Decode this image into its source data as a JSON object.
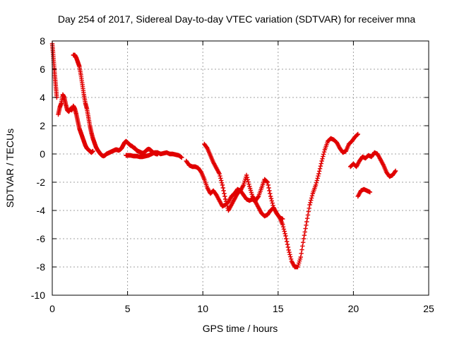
{
  "chart_data": {
    "type": "scatter",
    "title": "Day 254 of 2017, Sidereal Day-to-day VTEC variation (SDTVAR) for receiver mna",
    "xlabel": "GPS time / hours",
    "ylabel": "SDTVAR / TECUs",
    "xlim": [
      0,
      25
    ],
    "ylim": [
      -10,
      8
    ],
    "xticks": [
      "0",
      "5",
      "10",
      "15",
      "20",
      "25"
    ],
    "yticks": [
      "-10",
      "-8",
      "-6",
      "-4",
      "-2",
      "0",
      "2",
      "4",
      "6",
      "8"
    ],
    "grid": true,
    "marker": "+",
    "color": "#e00000",
    "segments": [
      {
        "x": [
          0.0,
          0.05,
          0.1,
          0.15,
          0.2,
          0.25,
          0.3
        ],
        "y": [
          7.8,
          7.2,
          6.5,
          5.8,
          5.2,
          4.6,
          4.0
        ]
      },
      {
        "x": [
          0.4,
          0.5,
          0.6,
          0.7,
          0.8,
          0.9,
          1.0,
          1.1,
          1.2,
          1.3,
          1.4,
          1.5,
          1.6,
          1.7,
          1.8,
          1.9,
          2.0,
          2.1,
          2.2,
          2.3,
          2.4,
          2.5,
          2.6,
          2.7
        ],
        "y": [
          2.8,
          3.3,
          3.6,
          4.2,
          4.0,
          3.5,
          3.1,
          3.0,
          3.2,
          3.1,
          3.4,
          3.2,
          2.8,
          2.3,
          1.8,
          1.5,
          1.2,
          0.9,
          0.6,
          0.4,
          0.3,
          0.2,
          0.1,
          0.2
        ]
      },
      {
        "x": [
          1.4,
          1.5,
          1.6,
          1.7,
          1.8,
          1.9,
          2.0,
          2.1,
          2.2,
          2.3,
          2.4,
          2.5,
          2.6,
          2.7,
          2.8,
          2.9,
          3.0,
          3.1,
          3.2,
          3.3,
          3.4,
          3.5,
          3.6,
          3.7,
          3.8,
          3.9,
          4.0,
          4.1,
          4.2,
          4.3,
          4.4,
          4.5,
          4.6,
          4.7,
          4.8,
          4.9,
          5.0,
          5.1,
          5.2,
          5.3,
          5.4,
          5.5,
          5.6,
          5.7,
          5.8,
          5.9,
          6.0,
          6.1,
          6.2,
          6.3,
          6.4,
          6.5,
          6.6,
          6.7,
          6.8,
          6.9,
          7.0
        ],
        "y": [
          7.0,
          7.0,
          6.8,
          6.5,
          6.2,
          5.6,
          4.9,
          4.2,
          3.6,
          3.2,
          2.6,
          2.0,
          1.5,
          1.1,
          0.8,
          0.5,
          0.3,
          0.15,
          0.0,
          -0.1,
          -0.15,
          -0.1,
          0.0,
          0.05,
          0.1,
          0.15,
          0.2,
          0.25,
          0.3,
          0.3,
          0.25,
          0.3,
          0.4,
          0.6,
          0.8,
          0.9,
          0.8,
          0.7,
          0.6,
          0.55,
          0.45,
          0.4,
          0.25,
          0.2,
          0.15,
          0.1,
          0.05,
          0.1,
          0.2,
          0.3,
          0.35,
          0.3,
          0.2,
          0.1,
          0.05,
          0.0,
          0.0
        ]
      },
      {
        "x": [
          4.9,
          5.0,
          5.2,
          5.4,
          5.6,
          5.8,
          6.0,
          6.2,
          6.4,
          6.6,
          6.8,
          7.0,
          7.2,
          7.4,
          7.6,
          7.8,
          8.0,
          8.2,
          8.4,
          8.6
        ],
        "y": [
          -0.1,
          -0.1,
          -0.1,
          -0.15,
          -0.15,
          -0.2,
          -0.2,
          -0.15,
          -0.1,
          0.0,
          0.1,
          0.1,
          0.0,
          0.05,
          0.1,
          0.0,
          0.0,
          -0.05,
          -0.1,
          -0.25
        ]
      },
      {
        "x": [
          8.9,
          9.1,
          9.3,
          9.5,
          9.7,
          9.9,
          10.1,
          10.3,
          10.5,
          10.7,
          10.9,
          11.1,
          11.3,
          11.5,
          11.7,
          11.9,
          12.1,
          12.3,
          12.5,
          12.7,
          12.9,
          13.1,
          13.3,
          13.5,
          13.7,
          13.9,
          14.1,
          14.3,
          14.5,
          14.7,
          14.9,
          15.1,
          15.3,
          15.5,
          15.7,
          15.9,
          16.1,
          16.3,
          16.5,
          16.7,
          16.9,
          17.1,
          17.3,
          17.5,
          17.7,
          17.9,
          18.1,
          18.3,
          18.5,
          18.7,
          18.9,
          19.1,
          19.3,
          19.5,
          19.7,
          19.9,
          20.1,
          20.3
        ],
        "y": [
          -0.5,
          -0.8,
          -0.9,
          -0.9,
          -1.0,
          -1.3,
          -1.8,
          -2.4,
          -2.8,
          -2.6,
          -2.9,
          -3.3,
          -3.7,
          -3.6,
          -3.4,
          -3.0,
          -2.8,
          -2.5,
          -2.6,
          -2.2,
          -1.5,
          -2.3,
          -3.0,
          -3.3,
          -3.0,
          -2.4,
          -1.8,
          -2.0,
          -3.0,
          -3.8,
          -4.2,
          -4.5,
          -5.0,
          -5.8,
          -6.8,
          -7.6,
          -8.0,
          -8.0,
          -7.3,
          -6.0,
          -4.8,
          -3.6,
          -2.8,
          -2.2,
          -1.4,
          -0.5,
          0.3,
          0.9,
          1.1,
          1.0,
          0.8,
          0.4,
          0.1,
          0.2,
          0.7,
          0.9,
          1.2,
          1.4
        ]
      },
      {
        "x": [
          10.1,
          10.3,
          10.5,
          10.7,
          10.9,
          11.1,
          11.3,
          11.5,
          11.7,
          11.9,
          12.1,
          12.3,
          12.5,
          12.7,
          12.9,
          13.1,
          13.3,
          13.5,
          13.7,
          13.9,
          14.1,
          14.3,
          14.5,
          14.7,
          14.9,
          15.1,
          15.3
        ],
        "y": [
          0.7,
          0.4,
          -0.1,
          -0.6,
          -1.0,
          -1.4,
          -2.2,
          -3.2,
          -4.0,
          -3.6,
          -3.2,
          -2.8,
          -2.6,
          -2.9,
          -3.2,
          -3.3,
          -3.2,
          -3.4,
          -3.8,
          -4.2,
          -4.4,
          -4.3,
          -4.0,
          -3.8,
          -4.2,
          -4.5,
          -4.6
        ]
      },
      {
        "x": [
          19.8,
          20.0,
          20.2,
          20.4,
          20.6,
          20.8,
          21.0,
          21.2,
          21.4,
          21.6,
          21.8,
          22.0,
          22.2,
          22.4,
          22.6,
          22.8
        ],
        "y": [
          -0.9,
          -0.7,
          -0.9,
          -0.5,
          -0.2,
          -0.3,
          -0.1,
          -0.2,
          0.1,
          0.0,
          -0.4,
          -0.8,
          -1.3,
          -1.6,
          -1.5,
          -1.2
        ]
      },
      {
        "x": [
          20.3,
          20.5,
          20.7,
          20.9,
          21.1
        ],
        "y": [
          -3.0,
          -2.6,
          -2.5,
          -2.6,
          -2.7
        ]
      }
    ]
  }
}
